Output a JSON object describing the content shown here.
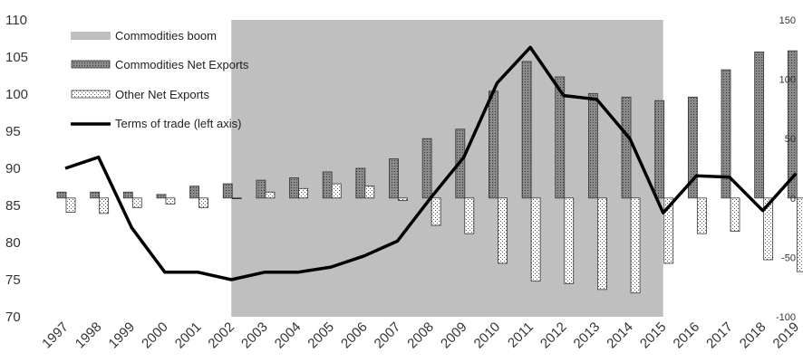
{
  "chart_data": {
    "type": "bar",
    "title": "",
    "categories": [
      "1997",
      "1998",
      "1999",
      "2000",
      "2001",
      "2002",
      "2003",
      "2004",
      "2005",
      "2006",
      "2007",
      "2008",
      "2009",
      "2010",
      "2011",
      "2012",
      "2013",
      "2014",
      "2015",
      "2016",
      "2017",
      "2018",
      "2019"
    ],
    "shaded_period": {
      "name": "Commodities boom",
      "start": "2002",
      "end": "2015",
      "color": "#bfbfbf"
    },
    "series": [
      {
        "name": "Commodities Net Exports",
        "kind": "bar",
        "axis": "right",
        "pattern": "dark-dotted",
        "values": [
          5,
          5,
          5,
          3,
          10,
          12,
          15,
          17,
          22,
          25,
          33,
          50,
          58,
          90,
          115,
          102,
          88,
          85,
          82,
          85,
          108,
          123,
          124
        ]
      },
      {
        "name": "Other Net Exports",
        "kind": "bar",
        "axis": "right",
        "pattern": "light-dotted",
        "values": [
          -12,
          -13,
          -8,
          -5,
          -8,
          0,
          5,
          8,
          12,
          10,
          -2,
          -23,
          -30,
          -55,
          -70,
          -72,
          -77,
          -80,
          -55,
          -30,
          -28,
          -52,
          -62
        ]
      },
      {
        "name": "Terms of trade (left axis)",
        "kind": "line",
        "axis": "left",
        "color": "#000000",
        "values": [
          90,
          91.5,
          82,
          76,
          76,
          75,
          76,
          76,
          76.7,
          78.2,
          80.2,
          86,
          91.5,
          101.5,
          106.3,
          99.8,
          99.3,
          94,
          84,
          89,
          88.8,
          84.3,
          89.3
        ]
      }
    ],
    "ylim_left": [
      70,
      110
    ],
    "yticks_left": [
      "70",
      "75",
      "80",
      "85",
      "90",
      "95",
      "100",
      "105",
      "110"
    ],
    "ylim_right": [
      -100,
      150
    ],
    "yticks_right": [
      "-100",
      "-50",
      "0",
      "50",
      "100",
      "150"
    ],
    "grid": false,
    "legend_position": "top-left"
  }
}
